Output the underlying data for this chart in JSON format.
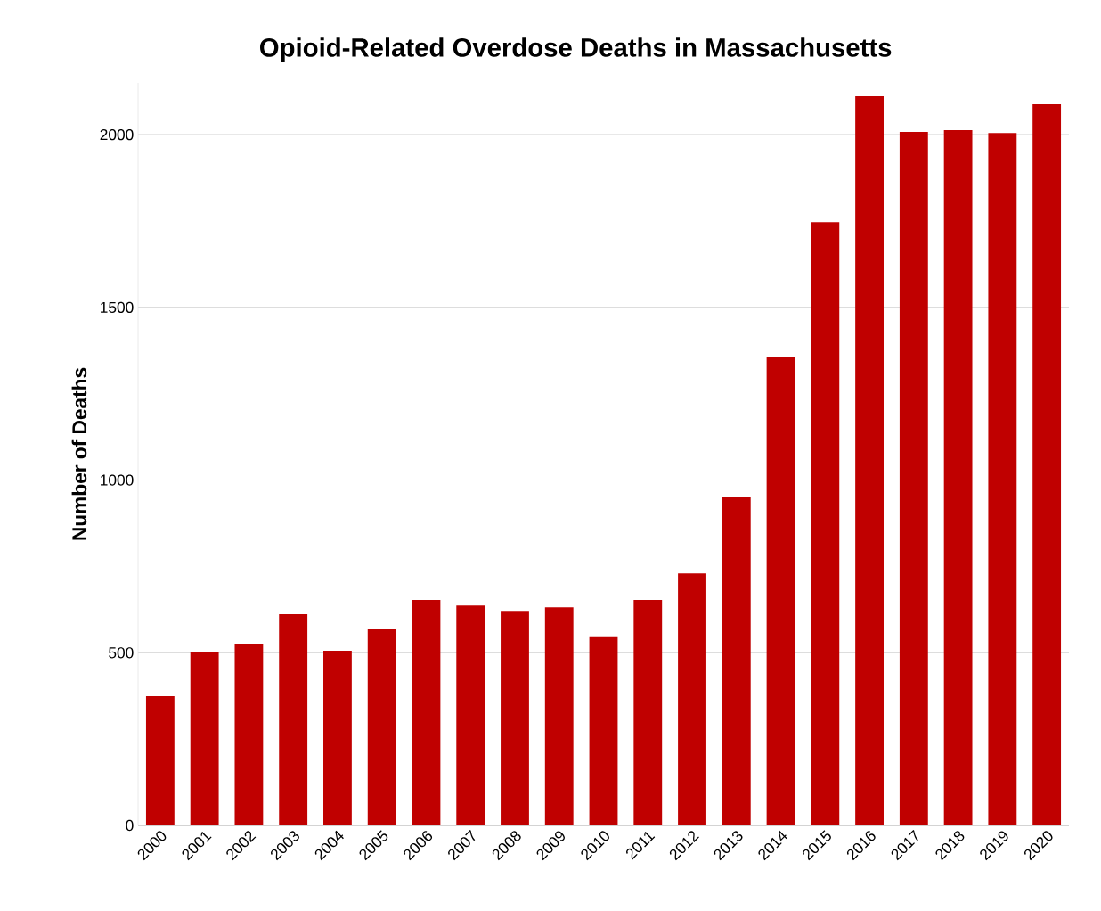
{
  "chart_data": {
    "type": "bar",
    "title": "Opioid-Related Overdose Deaths in Massachusetts",
    "ylabel": "Number of Deaths",
    "categories": [
      "2000",
      "2001",
      "2002",
      "2003",
      "2004",
      "2005",
      "2006",
      "2007",
      "2008",
      "2009",
      "2010",
      "2011",
      "2012",
      "2013",
      "2014",
      "2015",
      "2016",
      "2017",
      "2018",
      "2019",
      "2020"
    ],
    "values": [
      374,
      501,
      524,
      612,
      506,
      568,
      653,
      637,
      619,
      632,
      545,
      653,
      730,
      952,
      1355,
      1747,
      2111,
      2008,
      2013,
      2005,
      2088
    ],
    "color": "#c00000",
    "ylim": [
      0,
      2150
    ],
    "yticks": [
      0,
      500,
      1000,
      1500,
      2000
    ],
    "grid": "y"
  }
}
